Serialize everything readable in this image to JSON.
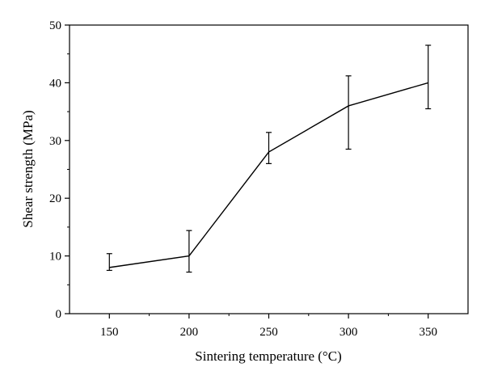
{
  "chart_data": {
    "type": "line",
    "xlabel": "Sintering temperature (°C)",
    "ylabel": "Shear strength (MPa)",
    "x": [
      150,
      200,
      250,
      300,
      350
    ],
    "series": [
      {
        "values": [
          8,
          10,
          28,
          36,
          40
        ],
        "error_low": [
          7.5,
          7.2,
          26,
          28.5,
          35.5
        ],
        "error_high": [
          10.4,
          14.4,
          31.4,
          41.2,
          46.5
        ]
      }
    ],
    "xlim": [
      125,
      375
    ],
    "ylim": [
      0,
      50
    ],
    "x_ticks": [
      150,
      200,
      250,
      300,
      350
    ],
    "y_ticks": [
      0,
      10,
      20,
      30,
      40,
      50
    ],
    "x_tick_labels": [
      "150",
      "200",
      "250",
      "300",
      "350"
    ],
    "y_tick_labels": [
      "0",
      "10",
      "20",
      "30",
      "40",
      "50"
    ],
    "grid": false,
    "legend": "none",
    "line_color": "#000000"
  }
}
